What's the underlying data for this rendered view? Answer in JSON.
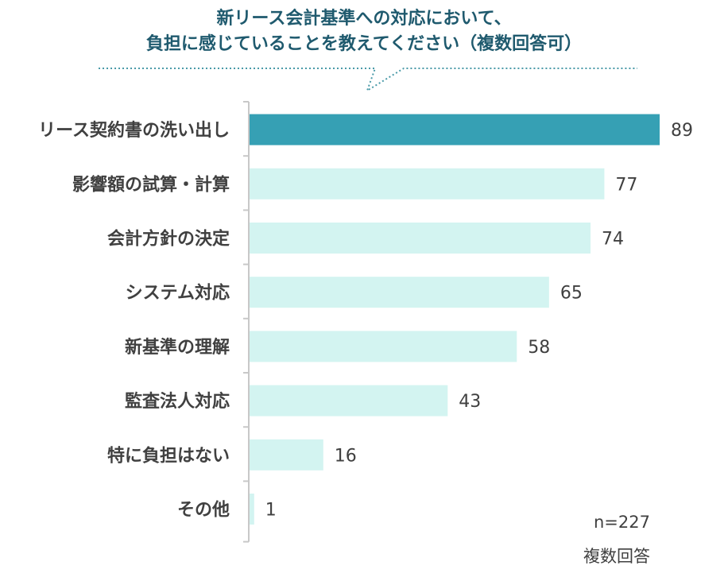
{
  "title_lines": [
    "新リース会計基準への対応において、",
    "負担に感じていることを教えてください（複数回答可）"
  ],
  "sample_note": "n=227",
  "answer_note": "複数回答",
  "colors": {
    "highlight": "#36a0b4",
    "bar": "#d3f4f1",
    "title": "#1f5a6e",
    "callout_line": "#4a9aa8",
    "axis": "#c8c8c8",
    "text": "#404040"
  },
  "chart_data": {
    "type": "bar",
    "orientation": "horizontal",
    "categories": [
      "リース契約書の洗い出し",
      "影響額の試算・計算",
      "会計方針の決定",
      "システム対応",
      "新基準の理解",
      "監査法人対応",
      "特に負担はない",
      "その他"
    ],
    "values": [
      89,
      77,
      74,
      65,
      58,
      43,
      16,
      1
    ],
    "highlight_index": 0,
    "xlim": [
      0,
      89
    ],
    "grid": false,
    "title": "新リース会計基準への対応において、負担に感じていることを教えてください（複数回答可）"
  }
}
